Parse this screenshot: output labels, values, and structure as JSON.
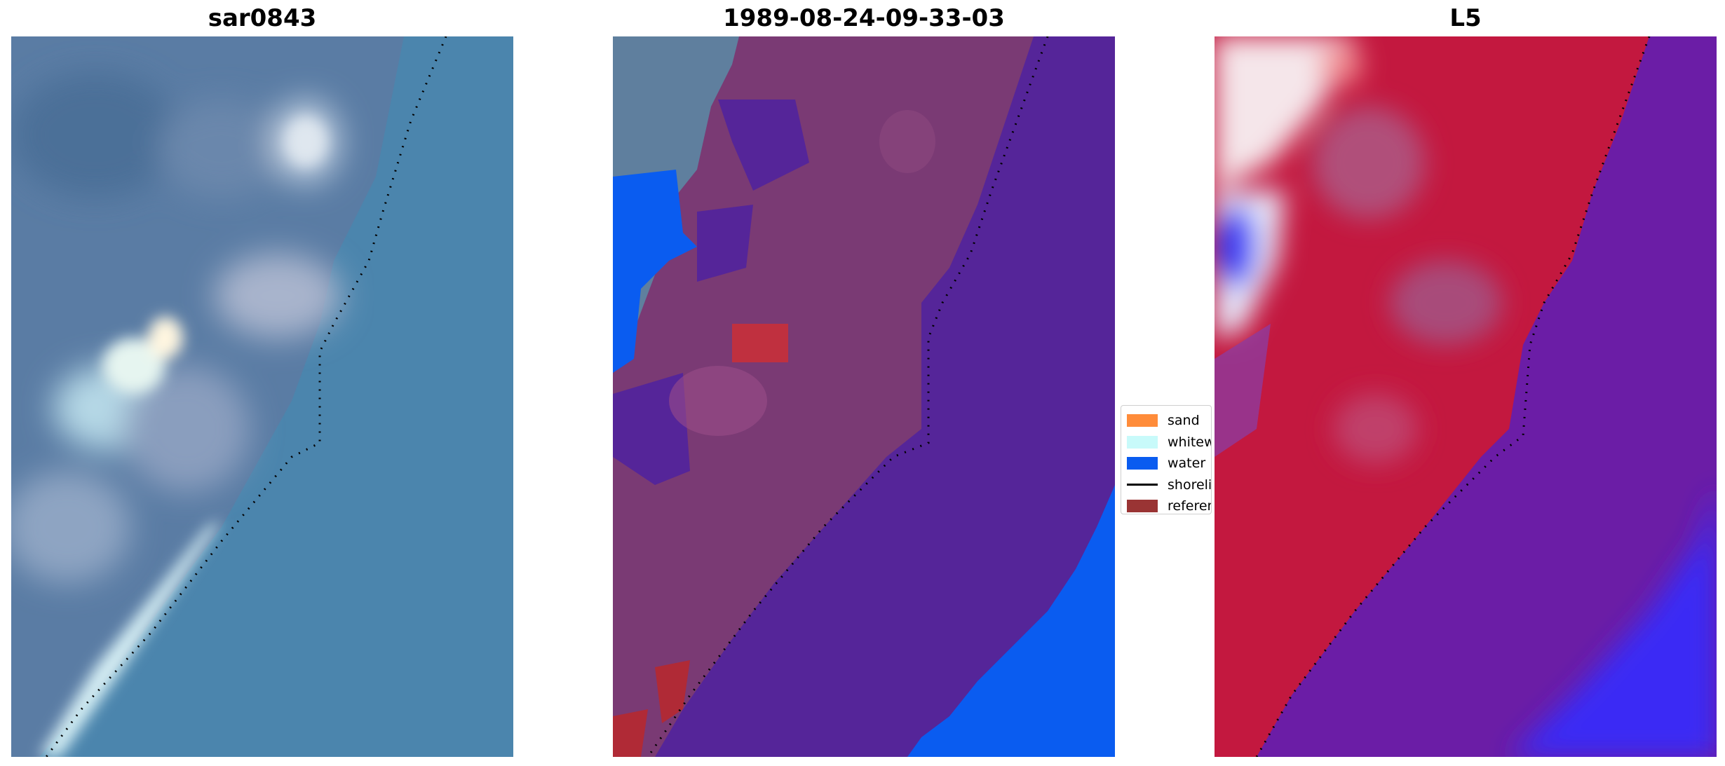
{
  "panels": [
    {
      "title": "sar0843"
    },
    {
      "title": "1989-08-24-09-33-03"
    },
    {
      "title": "L5"
    }
  ],
  "legend": {
    "items": [
      {
        "label": "sand",
        "color": "#ff8c3a",
        "kind": "patch"
      },
      {
        "label": "whitewater",
        "color": "#c8fafa",
        "kind": "patch"
      },
      {
        "label": "water",
        "color": "#0a5cf0",
        "kind": "patch"
      },
      {
        "label": "shoreline",
        "color": "#000000",
        "kind": "line"
      },
      {
        "label": "reference",
        "color": "#9a3434",
        "kind": "patch"
      }
    ]
  },
  "colors": {
    "rgb_sea": "#4a82ad",
    "rgb_land": "#5d7fa6",
    "class_land_overlay": "#7a3a74",
    "class_water": "#552599",
    "class_water_bright": "#0a5cf0",
    "prob_land": "#c3183f",
    "prob_water": "#6b1da6",
    "prob_deep_water": "#3b2cf5"
  }
}
